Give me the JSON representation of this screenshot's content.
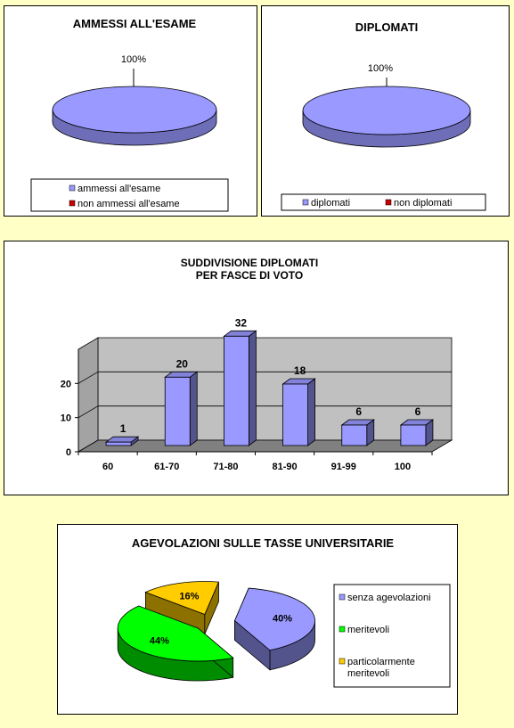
{
  "colors": {
    "page_bg": "#ffffc6",
    "primary": "#9999ff",
    "secondary": "#cc0000",
    "green": "#00ff00",
    "yellow": "#ffcc00",
    "wall": "#c0c0c0",
    "floor": "#808080"
  },
  "chart_data": [
    {
      "id": "ammessi",
      "type": "pie",
      "title": "AMMESSI ALL'ESAME",
      "labels": [
        "ammessi all'esame",
        "non ammessi all'esame"
      ],
      "values": [
        100,
        0
      ],
      "data_labels": [
        "100%"
      ],
      "legend_position": "bottom"
    },
    {
      "id": "diplomati",
      "type": "pie",
      "title": "DIPLOMATI",
      "labels": [
        "diplomati",
        "non diplomati"
      ],
      "values": [
        100,
        0
      ],
      "data_labels": [
        "100%"
      ],
      "legend_position": "bottom"
    },
    {
      "id": "voti",
      "type": "bar",
      "title": [
        "SUDDIVISIONE DIPLOMATI",
        "PER FASCE DI VOTO"
      ],
      "categories": [
        "60",
        "61-70",
        "71-80",
        "81-90",
        "91-99",
        "100"
      ],
      "values": [
        1,
        20,
        32,
        18,
        6,
        6
      ],
      "data_labels": [
        "1",
        "20",
        "32",
        "18",
        "6",
        "6"
      ],
      "yticks": [
        "0",
        "10",
        "20"
      ],
      "ylim": [
        0,
        30
      ],
      "grid": true
    },
    {
      "id": "agevolazioni",
      "type": "pie",
      "title": "AGEVOLAZIONI SULLE TASSE UNIVERSITARIE",
      "labels": [
        "senza agevolazioni",
        "meritevoli",
        "particolarmente meritevoli"
      ],
      "values": [
        40,
        44,
        16
      ],
      "data_labels": [
        "40%",
        "44%",
        "16%"
      ],
      "legend_position": "right"
    }
  ]
}
